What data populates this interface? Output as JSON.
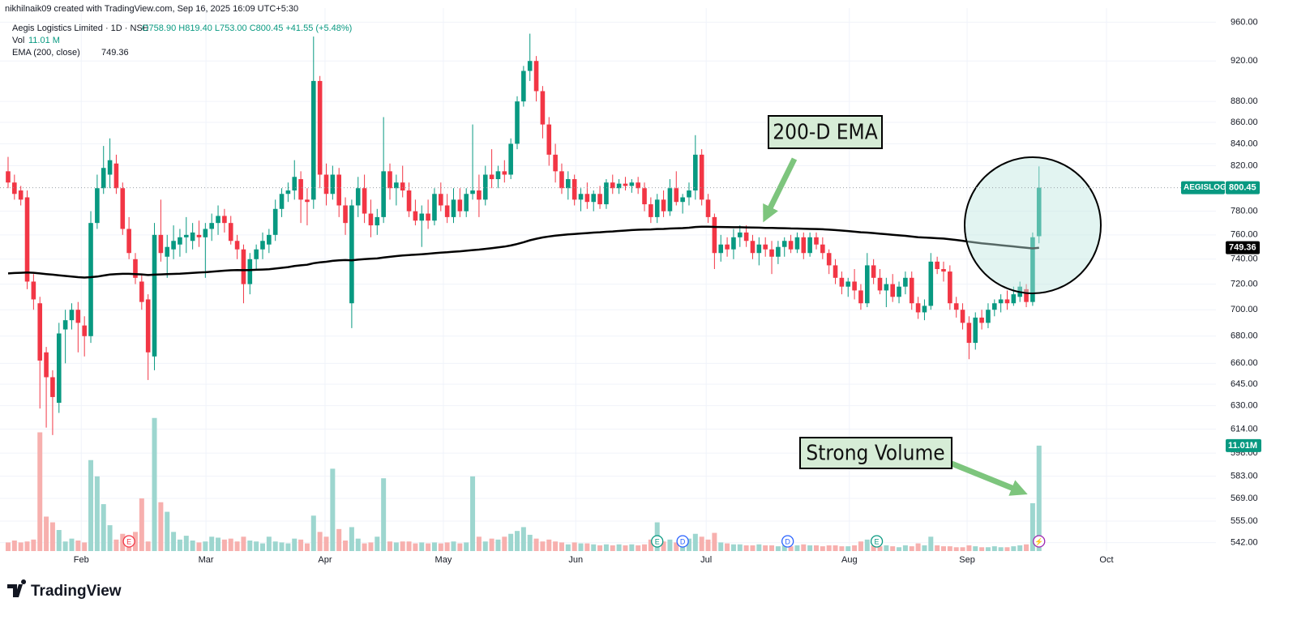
{
  "chart_data": {
    "type": "candlestick",
    "credit": "nikhilnaik09 created with TradingView.com, Sep 16, 2025 16:09 UTC+5:30",
    "symbol_line": "Aegis Logistics Limited · 1D · NSE",
    "ohlc_text": "O758.90 H819.40 L753.00 C800.45 +41.55 (+5.48%)",
    "vol_label": "Vol",
    "vol_text": "11.01 M",
    "ema_label": "EMA (200, close)",
    "symbol": "AEGISLOG",
    "footer_brand": "TradingView",
    "up_color": "#089981",
    "down_color": "#f23645",
    "volume_up_color": "#9dd6cf",
    "volume_down_color": "#f7b0ae",
    "log_scale": true,
    "grid": true,
    "ylim": [
      537,
      975
    ],
    "yticks": [
      {
        "value": 960,
        "label": "960.00"
      },
      {
        "value": 920,
        "label": "920.00"
      },
      {
        "value": 880,
        "label": "880.00"
      },
      {
        "value": 860,
        "label": "860.00"
      },
      {
        "value": 840,
        "label": "840.00"
      },
      {
        "value": 820,
        "label": "820.00"
      },
      {
        "value": 780,
        "label": "780.00"
      },
      {
        "value": 760,
        "label": "760.00"
      },
      {
        "value": 740,
        "label": "740.00"
      },
      {
        "value": 720,
        "label": "720.00"
      },
      {
        "value": 700,
        "label": "700.00"
      },
      {
        "value": 680,
        "label": "680.00"
      },
      {
        "value": 660,
        "label": "660.00"
      },
      {
        "value": 645,
        "label": "645.00"
      },
      {
        "value": 630,
        "label": "630.00"
      },
      {
        "value": 614,
        "label": "614.00"
      },
      {
        "value": 598,
        "label": "598.00"
      },
      {
        "value": 583,
        "label": "583.00"
      },
      {
        "value": 569,
        "label": "569.00"
      },
      {
        "value": 555,
        "label": "555.00"
      },
      {
        "value": 542,
        "label": "542.00"
      }
    ],
    "xlim": [
      -1.27,
      189.8
    ],
    "xticks": [
      {
        "value": 11.5,
        "label": "Feb"
      },
      {
        "value": 31.1,
        "label": "Mar"
      },
      {
        "value": 49.8,
        "label": "Apr"
      },
      {
        "value": 68.4,
        "label": "May"
      },
      {
        "value": 89.2,
        "label": "Jun"
      },
      {
        "value": 109.7,
        "label": "Jul"
      },
      {
        "value": 132.2,
        "label": "Aug"
      },
      {
        "value": 150.7,
        "label": "Sep"
      },
      {
        "value": 172.6,
        "label": "Oct"
      }
    ],
    "candles": [
      [
        815,
        828,
        800,
        805
      ],
      [
        805,
        812,
        790,
        795
      ],
      [
        798,
        802,
        785,
        790
      ],
      [
        792,
        798,
        716,
        722
      ],
      [
        722,
        728,
        700,
        708
      ],
      [
        705,
        710,
        628,
        662
      ],
      [
        668,
        672,
        615,
        650
      ],
      [
        650,
        655,
        610,
        636
      ],
      [
        632,
        690,
        625,
        682
      ],
      [
        685,
        700,
        660,
        692
      ],
      [
        692,
        705,
        685,
        700
      ],
      [
        700,
        706,
        668,
        690
      ],
      [
        688,
        695,
        665,
        680
      ],
      [
        680,
        780,
        675,
        770
      ],
      [
        770,
        812,
        765,
        800
      ],
      [
        800,
        838,
        795,
        818
      ],
      [
        812,
        845,
        800,
        825
      ],
      [
        822,
        830,
        795,
        800
      ],
      [
        800,
        805,
        760,
        765
      ],
      [
        765,
        775,
        740,
        745
      ],
      [
        740,
        745,
        720,
        725
      ],
      [
        722,
        728,
        700,
        706
      ],
      [
        708,
        712,
        648,
        668
      ],
      [
        665,
        770,
        655,
        760
      ],
      [
        760,
        790,
        738,
        745
      ],
      [
        742,
        760,
        725,
        750
      ],
      [
        748,
        768,
        740,
        755
      ],
      [
        752,
        765,
        742,
        758
      ],
      [
        758,
        775,
        745,
        760
      ],
      [
        755,
        770,
        748,
        762
      ],
      [
        760,
        772,
        750,
        758
      ],
      [
        758,
        770,
        725,
        765
      ],
      [
        765,
        778,
        755,
        770
      ],
      [
        770,
        785,
        760,
        776
      ],
      [
        776,
        782,
        762,
        770
      ],
      [
        770,
        776,
        752,
        755
      ],
      [
        755,
        760,
        740,
        748
      ],
      [
        748,
        752,
        705,
        720
      ],
      [
        720,
        745,
        712,
        740
      ],
      [
        740,
        752,
        732,
        748
      ],
      [
        748,
        762,
        740,
        755
      ],
      [
        752,
        765,
        745,
        760
      ],
      [
        760,
        790,
        755,
        782
      ],
      [
        782,
        800,
        775,
        795
      ],
      [
        795,
        805,
        788,
        798
      ],
      [
        798,
        825,
        790,
        810
      ],
      [
        808,
        815,
        770,
        790
      ],
      [
        790,
        800,
        768,
        788
      ],
      [
        790,
        945,
        782,
        900
      ],
      [
        900,
        905,
        800,
        812
      ],
      [
        812,
        822,
        785,
        795
      ],
      [
        795,
        820,
        790,
        812
      ],
      [
        812,
        818,
        775,
        785
      ],
      [
        785,
        792,
        760,
        770
      ],
      [
        705,
        790,
        686,
        785
      ],
      [
        785,
        810,
        775,
        800
      ],
      [
        800,
        812,
        770,
        778
      ],
      [
        778,
        790,
        758,
        768
      ],
      [
        768,
        782,
        760,
        775
      ],
      [
        775,
        865,
        770,
        815
      ],
      [
        815,
        822,
        790,
        800
      ],
      [
        800,
        812,
        785,
        805
      ],
      [
        805,
        820,
        792,
        798
      ],
      [
        798,
        805,
        775,
        780
      ],
      [
        780,
        790,
        768,
        772
      ],
      [
        772,
        785,
        750,
        778
      ],
      [
        778,
        790,
        765,
        772
      ],
      [
        772,
        800,
        768,
        795
      ],
      [
        795,
        805,
        780,
        785
      ],
      [
        785,
        795,
        770,
        775
      ],
      [
        775,
        800,
        770,
        790
      ],
      [
        790,
        800,
        775,
        780
      ],
      [
        780,
        800,
        775,
        795
      ],
      [
        795,
        858,
        790,
        798
      ],
      [
        798,
        812,
        775,
        790
      ],
      [
        790,
        820,
        785,
        812
      ],
      [
        812,
        835,
        800,
        808
      ],
      [
        808,
        820,
        800,
        815
      ],
      [
        815,
        825,
        805,
        812
      ],
      [
        812,
        845,
        808,
        840
      ],
      [
        840,
        885,
        835,
        880
      ],
      [
        880,
        915,
        875,
        910
      ],
      [
        910,
        948,
        900,
        920
      ],
      [
        920,
        925,
        880,
        890
      ],
      [
        890,
        895,
        845,
        858
      ],
      [
        858,
        865,
        820,
        830
      ],
      [
        830,
        840,
        805,
        815
      ],
      [
        815,
        822,
        795,
        800
      ],
      [
        800,
        815,
        790,
        808
      ],
      [
        808,
        812,
        785,
        790
      ],
      [
        790,
        800,
        780,
        795
      ],
      [
        795,
        805,
        782,
        788
      ],
      [
        788,
        798,
        780,
        795
      ],
      [
        795,
        802,
        782,
        786
      ],
      [
        786,
        808,
        782,
        805
      ],
      [
        805,
        812,
        795,
        800
      ],
      [
        800,
        808,
        795,
        804
      ],
      [
        804,
        810,
        798,
        802
      ],
      [
        802,
        808,
        796,
        805
      ],
      [
        805,
        810,
        795,
        800
      ],
      [
        800,
        805,
        780,
        786
      ],
      [
        786,
        792,
        770,
        775
      ],
      [
        775,
        795,
        770,
        790
      ],
      [
        790,
        798,
        775,
        780
      ],
      [
        780,
        808,
        776,
        800
      ],
      [
        800,
        815,
        785,
        788
      ],
      [
        788,
        795,
        778,
        792
      ],
      [
        792,
        805,
        785,
        798
      ],
      [
        798,
        848,
        790,
        830
      ],
      [
        830,
        835,
        785,
        790
      ],
      [
        790,
        795,
        770,
        775
      ],
      [
        775,
        778,
        732,
        745
      ],
      [
        745,
        760,
        738,
        752
      ],
      [
        752,
        758,
        742,
        748
      ],
      [
        748,
        765,
        740,
        758
      ],
      [
        758,
        768,
        750,
        762
      ],
      [
        762,
        768,
        750,
        755
      ],
      [
        755,
        760,
        740,
        745
      ],
      [
        745,
        758,
        735,
        752
      ],
      [
        752,
        758,
        742,
        748
      ],
      [
        748,
        755,
        728,
        742
      ],
      [
        742,
        755,
        736,
        750
      ],
      [
        750,
        758,
        742,
        755
      ],
      [
        755,
        760,
        745,
        748
      ],
      [
        748,
        762,
        745,
        758
      ],
      [
        758,
        762,
        740,
        745
      ],
      [
        745,
        762,
        742,
        758
      ],
      [
        758,
        762,
        748,
        752
      ],
      [
        752,
        758,
        740,
        745
      ],
      [
        745,
        748,
        728,
        735
      ],
      [
        735,
        740,
        720,
        725
      ],
      [
        725,
        730,
        712,
        718
      ],
      [
        718,
        725,
        710,
        722
      ],
      [
        722,
        732,
        708,
        715
      ],
      [
        715,
        720,
        700,
        705
      ],
      [
        705,
        745,
        702,
        735
      ],
      [
        735,
        740,
        720,
        725
      ],
      [
        725,
        732,
        712,
        715
      ],
      [
        715,
        725,
        702,
        720
      ],
      [
        720,
        728,
        706,
        710
      ],
      [
        710,
        722,
        705,
        718
      ],
      [
        718,
        730,
        712,
        725
      ],
      [
        725,
        730,
        700,
        705
      ],
      [
        705,
        710,
        693,
        698
      ],
      [
        698,
        708,
        692,
        703
      ],
      [
        703,
        745,
        700,
        738
      ],
      [
        738,
        742,
        728,
        732
      ],
      [
        732,
        738,
        722,
        730
      ],
      [
        730,
        735,
        700,
        705
      ],
      [
        705,
        710,
        694,
        700
      ],
      [
        700,
        705,
        685,
        690
      ],
      [
        690,
        695,
        663,
        675
      ],
      [
        675,
        698,
        670,
        694
      ],
      [
        694,
        700,
        685,
        690
      ],
      [
        690,
        705,
        686,
        700
      ],
      [
        700,
        708,
        695,
        705
      ],
      [
        705,
        712,
        698,
        708
      ],
      [
        708,
        715,
        700,
        705
      ],
      [
        705,
        718,
        703,
        712
      ],
      [
        710,
        722,
        706,
        718
      ],
      [
        716,
        720,
        702,
        706
      ],
      [
        706,
        762,
        703,
        758
      ],
      [
        758.9,
        819.4,
        753,
        800.45
      ]
    ],
    "ema": {
      "color": "#000000",
      "values": [
        728.5,
        728.8,
        729,
        729.2,
        729,
        728.5,
        728,
        727.5,
        727,
        726.5,
        726,
        725.5,
        725.2,
        725.5,
        726,
        726.8,
        727.6,
        728,
        728.2,
        728.2,
        728,
        727.7,
        727.2,
        727.5,
        727.7,
        727.9,
        728.1,
        728.3,
        728.6,
        728.9,
        729.2,
        729.5,
        729.9,
        730.3,
        730.7,
        731,
        731.2,
        731.1,
        731.2,
        731.4,
        731.6,
        731.9,
        732.4,
        733,
        733.6,
        734.4,
        735,
        735.5,
        736.7,
        737.4,
        737.9,
        738.6,
        739,
        739.3,
        739,
        739.6,
        740,
        740.3,
        740.6,
        741.3,
        741.9,
        742.5,
        743,
        743.4,
        743.7,
        744,
        744.4,
        744.9,
        745.3,
        745.6,
        746.1,
        746.4,
        746.9,
        747.4,
        747.8,
        748.4,
        749,
        749.6,
        750.3,
        751.2,
        752.4,
        753.9,
        755.5,
        756.8,
        757.9,
        758.7,
        759.4,
        759.9,
        760.4,
        760.8,
        761.2,
        761.5,
        761.9,
        762.2,
        762.6,
        762.9,
        763.3,
        763.6,
        764,
        764.3,
        764.5,
        764.6,
        764.9,
        765,
        765.3,
        765.5,
        765.7,
        766,
        766.6,
        766.8,
        766.9,
        766.7,
        766.6,
        766.5,
        766.4,
        766.4,
        766.3,
        766.2,
        766.1,
        765.9,
        765.8,
        765.7,
        765.6,
        765.4,
        765.3,
        765.1,
        765,
        764.9,
        764.7,
        764.4,
        764,
        763.6,
        763.2,
        762.7,
        762.2,
        761.9,
        761.5,
        761,
        760.6,
        760.1,
        759.6,
        759.2,
        758.6,
        758,
        757.8,
        757.5,
        757.2,
        756.9,
        756.4,
        755.8,
        755.1,
        754.3,
        753.7,
        753,
        752.5,
        752,
        751.4,
        750.9,
        750.4,
        749.8,
        749.3,
        748.8,
        749.36
      ]
    },
    "volume": {
      "ylim": [
        0,
        56.7
      ],
      "marker": {
        "value": 11.01,
        "label": "11.01M"
      },
      "values": [
        0.9,
        1.1,
        0.9,
        1.0,
        1.2,
        12.4,
        3.6,
        3.0,
        2.2,
        1.0,
        1.3,
        1.1,
        0.9,
        9.5,
        7.8,
        4.9,
        2.7,
        1.2,
        1.8,
        1.1,
        2.0,
        5.5,
        1.0,
        13.9,
        5.1,
        4.1,
        2.0,
        1.2,
        1.6,
        1.1,
        0.9,
        1.0,
        1.5,
        1.4,
        1.2,
        1.3,
        1.0,
        1.5,
        1.1,
        1.0,
        0.8,
        1.5,
        1.0,
        0.9,
        0.8,
        1.3,
        1.2,
        0.8,
        3.7,
        2.0,
        1.5,
        8.6,
        2.3,
        1.1,
        2.5,
        1.3,
        0.8,
        0.9,
        1.5,
        7.6,
        1.0,
        0.9,
        1.0,
        1.0,
        0.8,
        0.9,
        0.8,
        0.9,
        0.8,
        0.9,
        1.0,
        0.8,
        0.9,
        7.8,
        1.5,
        1.0,
        1.3,
        1.2,
        1.5,
        1.8,
        2.1,
        2.5,
        1.7,
        1.3,
        1.0,
        1.2,
        1.0,
        0.9,
        0.7,
        0.9,
        0.8,
        0.8,
        0.7,
        0.6,
        0.7,
        0.6,
        0.7,
        0.6,
        0.7,
        0.6,
        0.7,
        1.2,
        3.0,
        1.0,
        1.2,
        0.9,
        1.0,
        1.3,
        1.8,
        1.5,
        1.2,
        1.9,
        0.9,
        0.8,
        0.7,
        0.7,
        0.6,
        0.6,
        0.7,
        0.6,
        0.6,
        0.5,
        0.6,
        0.5,
        0.6,
        0.7,
        0.6,
        0.6,
        0.5,
        0.6,
        0.6,
        0.5,
        0.5,
        0.6,
        1.0,
        1.2,
        0.6,
        0.5,
        0.6,
        0.5,
        0.4,
        0.6,
        0.5,
        0.8,
        0.6,
        1.5,
        0.6,
        0.5,
        0.5,
        0.4,
        0.4,
        0.6,
        0.5,
        0.4,
        0.4,
        0.5,
        0.4,
        0.4,
        0.5,
        0.6,
        0.7,
        5.0,
        11.01
      ]
    },
    "events": [
      {
        "label": "E",
        "at": 19,
        "color": "#f23645"
      },
      {
        "label": "E",
        "at": 102,
        "color": "#089981"
      },
      {
        "label": "D",
        "at": 106,
        "color": "#2962ff"
      },
      {
        "label": "D",
        "at": 122.5,
        "color": "#2962ff"
      },
      {
        "label": "E",
        "at": 136.5,
        "color": "#089981"
      },
      {
        "label": "⚡",
        "at": 162,
        "color": "#9c27b0"
      }
    ],
    "annotations": [
      "200-D EMA",
      "Strong Volume"
    ]
  }
}
